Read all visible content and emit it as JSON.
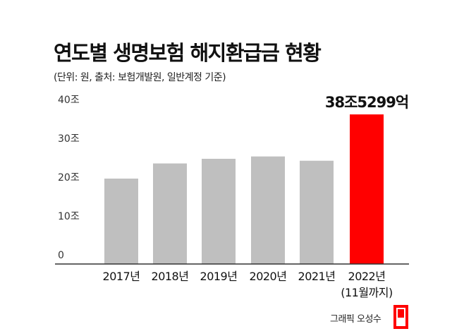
{
  "title": "연도별 생명보험 해지환급금 현황",
  "subtitle": "(단위: 원, 출처: 보험개발원, 일반계정 기준)",
  "credit": "그래픽 오성수",
  "colors": {
    "bar": "#bfbfbf",
    "highlight": "#ff0000",
    "axis": "#333333"
  },
  "chart_data": {
    "type": "bar",
    "categories": [
      "2017년",
      "2018년",
      "2019년",
      "2020년",
      "2021년",
      "2022년"
    ],
    "category_notes": [
      "",
      "",
      "",
      "",
      "",
      "(11월까지)"
    ],
    "values": [
      22.0,
      25.9,
      27.1,
      27.7,
      26.6,
      38.5299
    ],
    "value_labels": [
      "",
      "",
      "",
      "",
      "",
      "38조5299억"
    ],
    "highlight_index": 5,
    "yticks": [
      0,
      10,
      20,
      30,
      40
    ],
    "ytick_labels": [
      "0",
      "10조",
      "20조",
      "30조",
      "40조"
    ],
    "ylim": [
      0,
      40
    ],
    "grid": false,
    "title": "연도별 생명보험 해지환급금 현황",
    "xlabel": "",
    "ylabel": ""
  }
}
